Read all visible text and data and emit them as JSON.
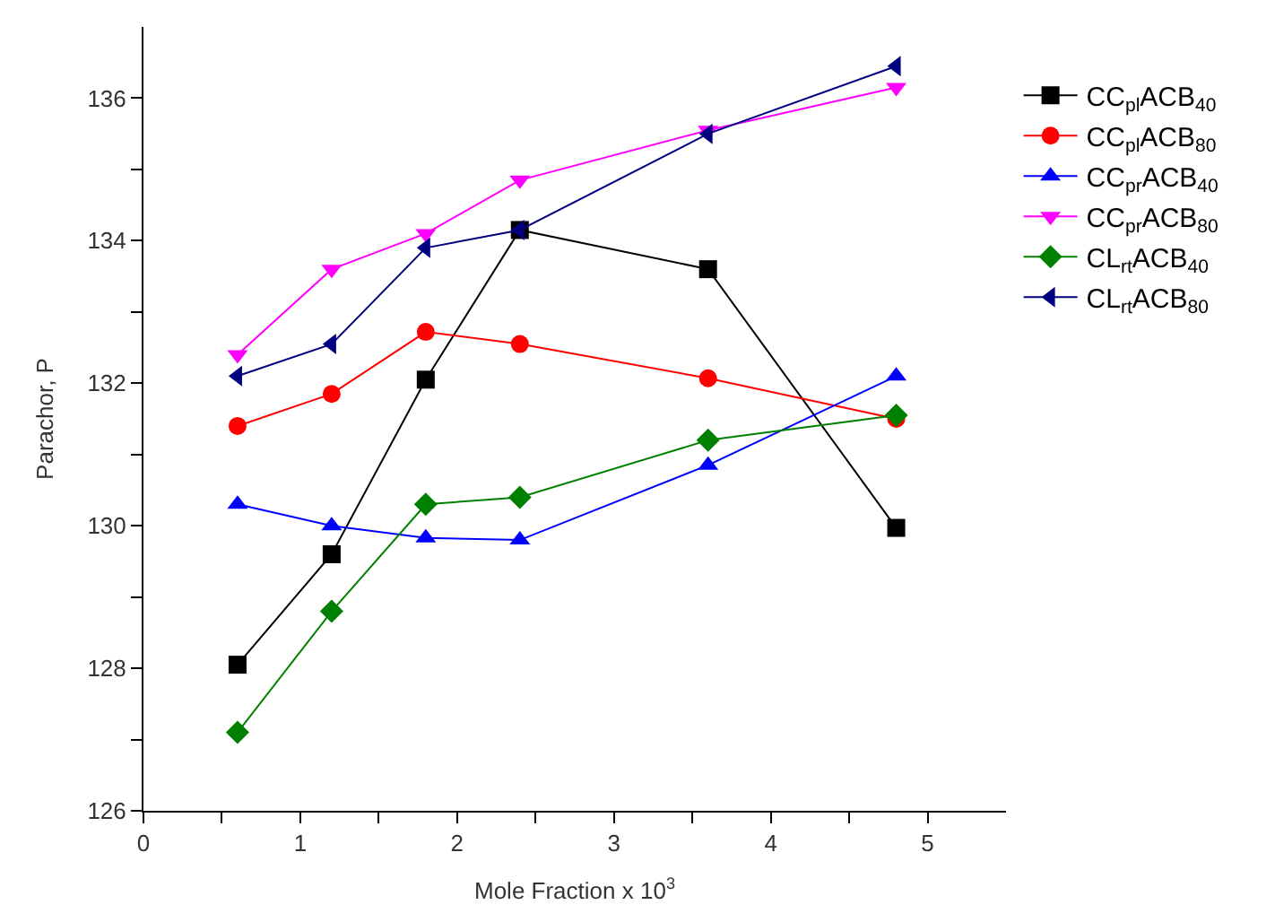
{
  "chart_data": {
    "type": "line",
    "xlabel": "Mole Fraction x 10$^{3}$",
    "ylabel": "Parachor, P",
    "x": [
      0.6,
      1.2,
      1.8,
      2.4,
      3.6,
      4.8
    ],
    "series": [
      {
        "name": "CC$_{pl}$ACB$_{40}$",
        "color": "#000000",
        "marker": "square",
        "values": [
          128.05,
          129.6,
          132.05,
          134.15,
          133.6,
          129.97
        ]
      },
      {
        "name": "CC$_{pl}$ACB$_{80}$",
        "color": "#ff0000",
        "marker": "circle",
        "values": [
          131.4,
          131.85,
          132.72,
          132.55,
          132.07,
          131.5
        ]
      },
      {
        "name": "CC$_{pr}$ACB$_{40}$",
        "color": "#0000ff",
        "marker": "triangle-up",
        "values": [
          130.3,
          130.0,
          129.83,
          129.8,
          130.85,
          132.1
        ]
      },
      {
        "name": "CC$_{pr}$ACB$_{80}$",
        "color": "#ff00ff",
        "marker": "triangle-down",
        "values": [
          132.4,
          133.6,
          134.1,
          134.85,
          135.55,
          136.15
        ]
      },
      {
        "name": "CL$_{rt}$ACB$_{40}$",
        "color": "#008000",
        "marker": "diamond",
        "values": [
          127.1,
          128.8,
          130.3,
          130.4,
          131.2,
          131.55
        ]
      },
      {
        "name": "CL$_{rt}$ACB$_{80}$",
        "color": "#000080",
        "marker": "triangle-left",
        "values": [
          132.1,
          132.55,
          133.9,
          134.15,
          135.5,
          136.45
        ]
      }
    ],
    "xlim": [
      0,
      5.5
    ],
    "xticks": [
      0,
      {
        "value": 0.5,
        "label": null
      },
      1,
      {
        "value": 1.5,
        "label": null
      },
      2,
      {
        "value": 2.5,
        "label": null
      },
      3,
      {
        "value": 3.5,
        "label": null
      },
      4,
      {
        "value": 4.5,
        "label": null
      },
      5
    ],
    "ylim": [
      126,
      137
    ],
    "yticks": [
      126,
      {
        "value": 127,
        "label": null
      },
      128,
      {
        "value": 129,
        "label": null
      },
      130,
      {
        "value": 131,
        "label": null
      },
      132,
      {
        "value": 133,
        "label": null
      },
      134,
      {
        "value": 135,
        "label": null
      },
      136
    ],
    "legend": "top right",
    "line_style": "solid"
  }
}
